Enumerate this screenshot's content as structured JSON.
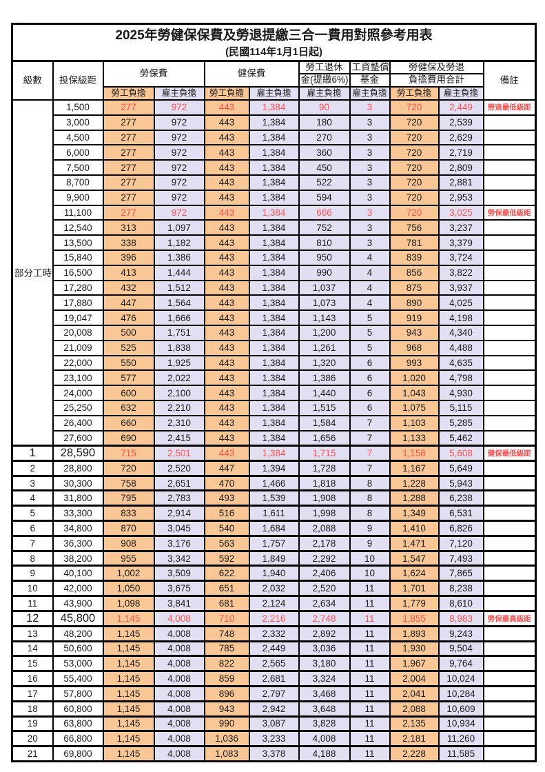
{
  "title": "2025年勞健保保費及勞退提繳三合一費用對照參考用表",
  "subtitle": "(民國114年1月1日起)",
  "colors": {
    "employee_bg": "#F8C795",
    "employer_bg": "#E2DFF2",
    "highlight_red": "#FF5050",
    "grid": "#000000"
  },
  "header": {
    "level": "級數",
    "bracket": "投保級距",
    "labor_fee": "勞保費",
    "health_fee": "健保費",
    "pension_line1": "勞工退休",
    "pension_line2": "金(提繳6%)",
    "wage_fund_line1": "工資墊償",
    "wage_fund_line2": "基金",
    "total_line1": "勞健保及勞退",
    "total_line2": "負擔費用合計",
    "remark": "備註",
    "employee_share": "勞工負擔",
    "employer_share": "雇主負擔"
  },
  "part_time": {
    "label": "部分工時",
    "rowspan": 23
  },
  "rows": [
    {
      "lv": null,
      "b": "1,500",
      "v": [
        "277",
        "972",
        "443",
        "1,384",
        "90",
        "3",
        "720",
        "2,449"
      ],
      "r": "勞退最低級距",
      "red": true
    },
    {
      "lv": null,
      "b": "3,000",
      "v": [
        "277",
        "972",
        "443",
        "1,384",
        "180",
        "3",
        "720",
        "2,539"
      ],
      "r": ""
    },
    {
      "lv": null,
      "b": "4,500",
      "v": [
        "277",
        "972",
        "443",
        "1,384",
        "270",
        "3",
        "720",
        "2,629"
      ],
      "r": ""
    },
    {
      "lv": null,
      "b": "6,000",
      "v": [
        "277",
        "972",
        "443",
        "1,384",
        "360",
        "3",
        "720",
        "2,719"
      ],
      "r": ""
    },
    {
      "lv": null,
      "b": "7,500",
      "v": [
        "277",
        "972",
        "443",
        "1,384",
        "450",
        "3",
        "720",
        "2,809"
      ],
      "r": ""
    },
    {
      "lv": null,
      "b": "8,700",
      "v": [
        "277",
        "972",
        "443",
        "1,384",
        "522",
        "3",
        "720",
        "2,881"
      ],
      "r": ""
    },
    {
      "lv": null,
      "b": "9,900",
      "v": [
        "277",
        "972",
        "443",
        "1,384",
        "594",
        "3",
        "720",
        "2,953"
      ],
      "r": ""
    },
    {
      "lv": null,
      "b": "11,100",
      "v": [
        "277",
        "972",
        "443",
        "1,384",
        "666",
        "3",
        "720",
        "3,025"
      ],
      "r": "勞保最低級距",
      "red": true
    },
    {
      "lv": null,
      "b": "12,540",
      "v": [
        "313",
        "1,097",
        "443",
        "1,384",
        "752",
        "3",
        "756",
        "3,237"
      ],
      "r": ""
    },
    {
      "lv": null,
      "b": "13,500",
      "v": [
        "338",
        "1,182",
        "443",
        "1,384",
        "810",
        "3",
        "781",
        "3,379"
      ],
      "r": ""
    },
    {
      "lv": null,
      "b": "15,840",
      "v": [
        "396",
        "1,386",
        "443",
        "1,384",
        "950",
        "4",
        "839",
        "3,724"
      ],
      "r": ""
    },
    {
      "lv": null,
      "b": "16,500",
      "v": [
        "413",
        "1,444",
        "443",
        "1,384",
        "990",
        "4",
        "856",
        "3,822"
      ],
      "r": ""
    },
    {
      "lv": null,
      "b": "17,280",
      "v": [
        "432",
        "1,512",
        "443",
        "1,384",
        "1,037",
        "4",
        "875",
        "3,937"
      ],
      "r": ""
    },
    {
      "lv": null,
      "b": "17,880",
      "v": [
        "447",
        "1,564",
        "443",
        "1,384",
        "1,073",
        "4",
        "890",
        "4,025"
      ],
      "r": ""
    },
    {
      "lv": null,
      "b": "19,047",
      "v": [
        "476",
        "1,666",
        "443",
        "1,384",
        "1,143",
        "5",
        "919",
        "4,198"
      ],
      "r": ""
    },
    {
      "lv": null,
      "b": "20,008",
      "v": [
        "500",
        "1,751",
        "443",
        "1,384",
        "1,200",
        "5",
        "943",
        "4,340"
      ],
      "r": ""
    },
    {
      "lv": null,
      "b": "21,009",
      "v": [
        "525",
        "1,838",
        "443",
        "1,384",
        "1,261",
        "5",
        "968",
        "4,488"
      ],
      "r": ""
    },
    {
      "lv": null,
      "b": "22,000",
      "v": [
        "550",
        "1,925",
        "443",
        "1,384",
        "1,320",
        "6",
        "993",
        "4,635"
      ],
      "r": ""
    },
    {
      "lv": null,
      "b": "23,100",
      "v": [
        "577",
        "2,022",
        "443",
        "1,384",
        "1,386",
        "6",
        "1,020",
        "4,798"
      ],
      "r": ""
    },
    {
      "lv": null,
      "b": "24,000",
      "v": [
        "600",
        "2,100",
        "443",
        "1,384",
        "1,440",
        "6",
        "1,043",
        "4,930"
      ],
      "r": ""
    },
    {
      "lv": null,
      "b": "25,250",
      "v": [
        "632",
        "2,210",
        "443",
        "1,384",
        "1,515",
        "6",
        "1,075",
        "5,115"
      ],
      "r": ""
    },
    {
      "lv": null,
      "b": "26,400",
      "v": [
        "660",
        "2,310",
        "443",
        "1,384",
        "1,584",
        "7",
        "1,103",
        "5,285"
      ],
      "r": ""
    },
    {
      "lv": null,
      "b": "27,600",
      "v": [
        "690",
        "2,415",
        "443",
        "1,384",
        "1,656",
        "7",
        "1,133",
        "5,462"
      ],
      "r": ""
    },
    {
      "lv": "1",
      "b": "28,590",
      "v": [
        "715",
        "2,501",
        "443",
        "1,384",
        "1,715",
        "7",
        "1,158",
        "5,608"
      ],
      "r": "健保最低級距",
      "red": true,
      "big": true
    },
    {
      "lv": "2",
      "b": "28,800",
      "v": [
        "720",
        "2,520",
        "447",
        "1,394",
        "1,728",
        "7",
        "1,167",
        "5,649"
      ],
      "r": ""
    },
    {
      "lv": "3",
      "b": "30,300",
      "v": [
        "758",
        "2,651",
        "470",
        "1,466",
        "1,818",
        "8",
        "1,228",
        "5,943"
      ],
      "r": ""
    },
    {
      "lv": "4",
      "b": "31,800",
      "v": [
        "795",
        "2,783",
        "493",
        "1,539",
        "1,908",
        "8",
        "1,288",
        "6,238"
      ],
      "r": ""
    },
    {
      "lv": "5",
      "b": "33,300",
      "v": [
        "833",
        "2,914",
        "516",
        "1,611",
        "1,998",
        "8",
        "1,349",
        "6,531"
      ],
      "r": ""
    },
    {
      "lv": "6",
      "b": "34,800",
      "v": [
        "870",
        "3,045",
        "540",
        "1,684",
        "2,088",
        "9",
        "1,410",
        "6,826"
      ],
      "r": ""
    },
    {
      "lv": "7",
      "b": "36,300",
      "v": [
        "908",
        "3,176",
        "563",
        "1,757",
        "2,178",
        "9",
        "1,471",
        "7,120"
      ],
      "r": ""
    },
    {
      "lv": "8",
      "b": "38,200",
      "v": [
        "955",
        "3,342",
        "592",
        "1,849",
        "2,292",
        "10",
        "1,547",
        "7,493"
      ],
      "r": ""
    },
    {
      "lv": "9",
      "b": "40,100",
      "v": [
        "1,002",
        "3,509",
        "622",
        "1,940",
        "2,406",
        "10",
        "1,624",
        "7,865"
      ],
      "r": ""
    },
    {
      "lv": "10",
      "b": "42,000",
      "v": [
        "1,050",
        "3,675",
        "651",
        "2,032",
        "2,520",
        "11",
        "1,701",
        "8,238"
      ],
      "r": ""
    },
    {
      "lv": "11",
      "b": "43,900",
      "v": [
        "1,098",
        "3,841",
        "681",
        "2,124",
        "2,634",
        "11",
        "1,779",
        "8,610"
      ],
      "r": ""
    },
    {
      "lv": "12",
      "b": "45,800",
      "v": [
        "1,145",
        "4,008",
        "710",
        "2,216",
        "2,748",
        "11",
        "1,855",
        "8,983"
      ],
      "r": "勞保最高級距",
      "red": true,
      "big": true
    },
    {
      "lv": "13",
      "b": "48,200",
      "v": [
        "1,145",
        "4,008",
        "748",
        "2,332",
        "2,892",
        "11",
        "1,893",
        "9,243"
      ],
      "r": ""
    },
    {
      "lv": "14",
      "b": "50,600",
      "v": [
        "1,145",
        "4,008",
        "785",
        "2,449",
        "3,036",
        "11",
        "1,930",
        "9,504"
      ],
      "r": ""
    },
    {
      "lv": "15",
      "b": "53,000",
      "v": [
        "1,145",
        "4,008",
        "822",
        "2,565",
        "3,180",
        "11",
        "1,967",
        "9,764"
      ],
      "r": ""
    },
    {
      "lv": "16",
      "b": "55,400",
      "v": [
        "1,145",
        "4,008",
        "859",
        "2,681",
        "3,324",
        "11",
        "2,004",
        "10,024"
      ],
      "r": ""
    },
    {
      "lv": "17",
      "b": "57,800",
      "v": [
        "1,145",
        "4,008",
        "896",
        "2,797",
        "3,468",
        "11",
        "2,041",
        "10,284"
      ],
      "r": ""
    },
    {
      "lv": "18",
      "b": "60,800",
      "v": [
        "1,145",
        "4,008",
        "943",
        "2,942",
        "3,648",
        "11",
        "2,088",
        "10,609"
      ],
      "r": ""
    },
    {
      "lv": "19",
      "b": "63,800",
      "v": [
        "1,145",
        "4,008",
        "990",
        "3,087",
        "3,828",
        "11",
        "2,135",
        "10,934"
      ],
      "r": ""
    },
    {
      "lv": "20",
      "b": "66,800",
      "v": [
        "1,145",
        "4,008",
        "1,036",
        "3,233",
        "4,008",
        "11",
        "2,181",
        "11,260"
      ],
      "r": ""
    },
    {
      "lv": "21",
      "b": "69,800",
      "v": [
        "1,145",
        "4,008",
        "1,083",
        "3,378",
        "4,188",
        "11",
        "2,228",
        "11,585"
      ],
      "r": ""
    }
  ]
}
